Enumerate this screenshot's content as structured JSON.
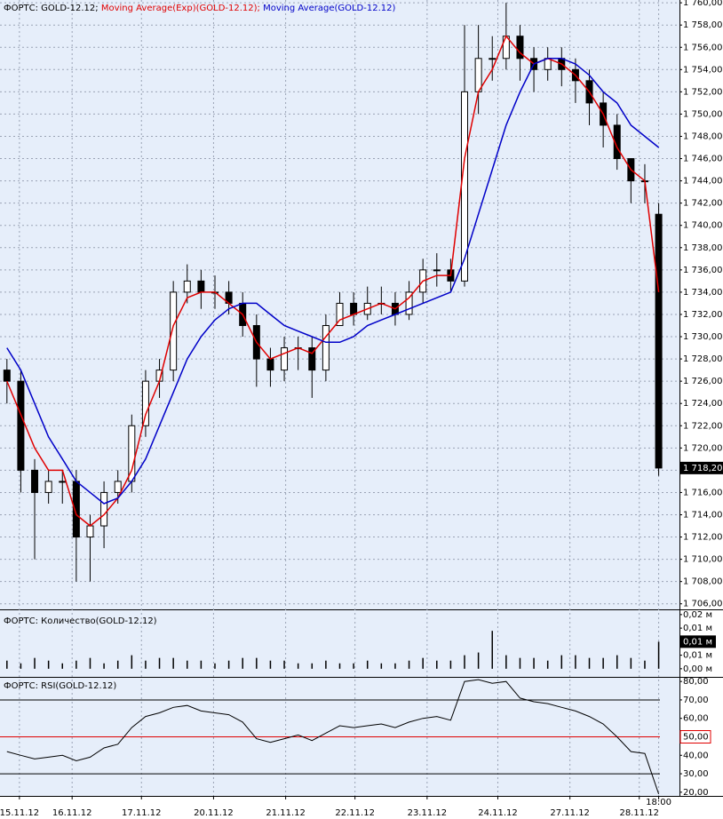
{
  "chart_data": [
    {
      "type": "candlestick",
      "legend_prefix": "ФОРТС: GOLD-12.12;",
      "open": [
        1727,
        1726,
        1718,
        1716,
        1717,
        1717,
        1712,
        1713,
        1716,
        1717,
        1722,
        1726,
        1727,
        1734,
        1735,
        1734,
        1734,
        1733,
        1731,
        1728,
        1727,
        1729,
        1729,
        1727,
        1731,
        1733,
        1732,
        1733,
        1733,
        1732,
        1734,
        1736,
        1736,
        1735,
        1752,
        1755,
        1755,
        1757,
        1755,
        1754,
        1755,
        1754,
        1753,
        1751,
        1749,
        1746,
        1744,
        1741
      ],
      "high": [
        1728,
        1727,
        1719,
        1718,
        1718,
        1718,
        1714,
        1717,
        1718,
        1723,
        1727,
        1728,
        1735,
        1736.5,
        1736,
        1735.5,
        1735,
        1734,
        1732,
        1729,
        1730,
        1730,
        1730,
        1732,
        1734,
        1734,
        1734.5,
        1734.5,
        1734,
        1735,
        1737,
        1737.5,
        1737,
        1758,
        1758,
        1757,
        1760,
        1758,
        1756,
        1756,
        1756,
        1755,
        1754,
        1752,
        1750,
        1746,
        1745.5,
        1742
      ],
      "low": [
        1724,
        1716,
        1710,
        1715,
        1715,
        1708,
        1708,
        1711,
        1715,
        1716,
        1721,
        1724.5,
        1726,
        1733,
        1732.5,
        1732.5,
        1732,
        1730,
        1725.5,
        1725.5,
        1726,
        1727,
        1724.5,
        1726,
        1731,
        1731,
        1731.5,
        1732,
        1731,
        1731.5,
        1733,
        1734.5,
        1734,
        1734.5,
        1750,
        1753,
        1754,
        1753,
        1752,
        1753,
        1752.5,
        1751,
        1749,
        1747,
        1745,
        1742,
        1742,
        1717.5
      ],
      "close": [
        1726,
        1718,
        1716,
        1717,
        1717,
        1712,
        1713,
        1716,
        1717,
        1722,
        1726,
        1727,
        1734,
        1735,
        1734,
        1734,
        1733,
        1731,
        1728,
        1727,
        1729,
        1729,
        1727,
        1731,
        1733,
        1732,
        1733,
        1733,
        1732,
        1734,
        1736,
        1736,
        1735,
        1752,
        1755,
        1755,
        1757,
        1755,
        1754,
        1755,
        1754,
        1753,
        1751,
        1749,
        1746,
        1744,
        1744,
        1718.2
      ],
      "series": [
        {
          "name": "Moving Average(Exp)(GOLD-12.12);",
          "color": "#e00000",
          "values": [
            1726,
            1723,
            1720,
            1718,
            1718,
            1714,
            1713,
            1714,
            1715.5,
            1718,
            1723,
            1726,
            1731,
            1733.5,
            1734,
            1734,
            1733,
            1732,
            1729.5,
            1728,
            1728.5,
            1729,
            1728.5,
            1730,
            1731.5,
            1732,
            1732.5,
            1733,
            1732.5,
            1733.5,
            1735,
            1735.5,
            1735.5,
            1746,
            1752,
            1754,
            1757,
            1755.5,
            1754.5,
            1755,
            1754.5,
            1753.5,
            1752,
            1750,
            1747,
            1745,
            1744,
            1734
          ]
        },
        {
          "name": "Moving Average(GOLD-12.12)",
          "color": "#0000c8",
          "values": [
            1729,
            1727,
            1724,
            1721,
            1719,
            1717,
            1716,
            1715,
            1715.5,
            1717,
            1719,
            1722,
            1725,
            1728,
            1730,
            1731.5,
            1732.5,
            1733,
            1733,
            1732,
            1731,
            1730.5,
            1730,
            1729.5,
            1729.5,
            1730,
            1731,
            1731.5,
            1732,
            1732.5,
            1733,
            1733.5,
            1734,
            1737,
            1741,
            1745,
            1749,
            1752,
            1754.5,
            1755,
            1755,
            1754.5,
            1753.5,
            1752,
            1751,
            1749,
            1748,
            1747
          ]
        }
      ],
      "xlim": [
        -0.5,
        48.5
      ],
      "ylim": [
        1705.5,
        1760.25
      ],
      "yticks": [
        {
          "value": 1706,
          "label": "1 706,00"
        },
        {
          "value": 1708,
          "label": "1 708,00"
        },
        {
          "value": 1710,
          "label": "1 710,00"
        },
        {
          "value": 1712,
          "label": "1 712,00"
        },
        {
          "value": 1714,
          "label": "1 714,00"
        },
        {
          "value": 1716,
          "label": "1 716,00"
        },
        {
          "value": 1718,
          "label": "1 718,00"
        },
        {
          "value": 1720,
          "label": "1 720,00"
        },
        {
          "value": 1722,
          "label": "1 722,00"
        },
        {
          "value": 1724,
          "label": "1 724,00"
        },
        {
          "value": 1726,
          "label": "1 726,00"
        },
        {
          "value": 1728,
          "label": "1 728,00"
        },
        {
          "value": 1730,
          "label": "1 730,00"
        },
        {
          "value": 1732,
          "label": "1 732,00"
        },
        {
          "value": 1734,
          "label": "1 734,00"
        },
        {
          "value": 1736,
          "label": "1 736,00"
        },
        {
          "value": 1738,
          "label": "1 738,00"
        },
        {
          "value": 1740,
          "label": "1 740,00"
        },
        {
          "value": 1742,
          "label": "1 742,00"
        },
        {
          "value": 1744,
          "label": "1 744,00"
        },
        {
          "value": 1746,
          "label": "1 746,00"
        },
        {
          "value": 1748,
          "label": "1 748,00"
        },
        {
          "value": 1750,
          "label": "1 750,00"
        },
        {
          "value": 1752,
          "label": "1 752,00"
        },
        {
          "value": 1754,
          "label": "1 754,00"
        },
        {
          "value": 1756,
          "label": "1 756,00"
        },
        {
          "value": 1758,
          "label": "1 758,00"
        },
        {
          "value": 1760,
          "label": "1 760,00"
        }
      ],
      "last_value": {
        "value": 1718.2,
        "label": "1 718,20"
      },
      "grid": true
    },
    {
      "type": "bar",
      "title": "ФОРТС: Количество(GOLD-12.12)",
      "color": "#000000",
      "values": [
        0.003,
        0.002,
        0.004,
        0.003,
        0.002,
        0.003,
        0.004,
        0.002,
        0.003,
        0.005,
        0.003,
        0.004,
        0.004,
        0.003,
        0.003,
        0.002,
        0.003,
        0.004,
        0.004,
        0.003,
        0.003,
        0.002,
        0.002,
        0.003,
        0.002,
        0.002,
        0.003,
        0.002,
        0.002,
        0.003,
        0.004,
        0.003,
        0.003,
        0.005,
        0.006,
        0.014,
        0.005,
        0.004,
        0.004,
        0.003,
        0.005,
        0.005,
        0.004,
        0.004,
        0.005,
        0.004,
        0.003,
        0.01
      ],
      "xlim": [
        -0.5,
        48.5
      ],
      "ylim": [
        -0.003,
        0.0216
      ],
      "yticks": [
        {
          "value": 0,
          "label": "0,00 м"
        },
        {
          "value": 0.005,
          "label": "0,01 м"
        },
        {
          "value": 0.015,
          "label": "0,01 м"
        },
        {
          "value": 0.02,
          "label": "0,02 м"
        }
      ],
      "last_value": {
        "value": 0.01,
        "label": "0,01 м"
      },
      "grid": true
    },
    {
      "type": "line",
      "title": "ФОРТС: RSI(GOLD-12.12)",
      "color": "#000000",
      "values": [
        42,
        40,
        38,
        39,
        40,
        37,
        39,
        44,
        46,
        55,
        61,
        63,
        66,
        67,
        64,
        63,
        62,
        58,
        49,
        47,
        49,
        51,
        48,
        52,
        56,
        55,
        56,
        57,
        55,
        58,
        60,
        61,
        59,
        80,
        81,
        79,
        80,
        71,
        69,
        68,
        66,
        64,
        61,
        57,
        50,
        42,
        41,
        19
      ],
      "xlim": [
        -0.5,
        48.5
      ],
      "ylim": [
        18,
        82
      ],
      "yticks": [
        {
          "value": 20,
          "label": "20,00"
        },
        {
          "value": 30,
          "label": "30,00"
        },
        {
          "value": 40,
          "label": "40,00"
        },
        {
          "value": 50,
          "label": "50,00"
        },
        {
          "value": 60,
          "label": "60,00"
        },
        {
          "value": 70,
          "label": "70,00"
        },
        {
          "value": 80,
          "label": "80,00"
        }
      ],
      "levels": [
        30,
        50,
        70
      ],
      "highlight_level": 50,
      "highlight_color": "#e00000",
      "xticks": [
        {
          "value": 0.9,
          "label": "15.11.12"
        },
        {
          "value": 4.7,
          "label": "16.11.12"
        },
        {
          "value": 9.7,
          "label": "17.11.12"
        },
        {
          "value": 14.9,
          "label": "20.11.12"
        },
        {
          "value": 20.1,
          "label": "21.11.12"
        },
        {
          "value": 25.1,
          "label": "22.11.12"
        },
        {
          "value": 30.3,
          "label": "23.11.12"
        },
        {
          "value": 35.4,
          "label": "24.11.12"
        },
        {
          "value": 40.6,
          "label": "27.11.12"
        },
        {
          "value": 45.6,
          "label": "28.11.12"
        },
        {
          "value": 47,
          "label": "18:00"
        }
      ],
      "grid": true
    }
  ]
}
